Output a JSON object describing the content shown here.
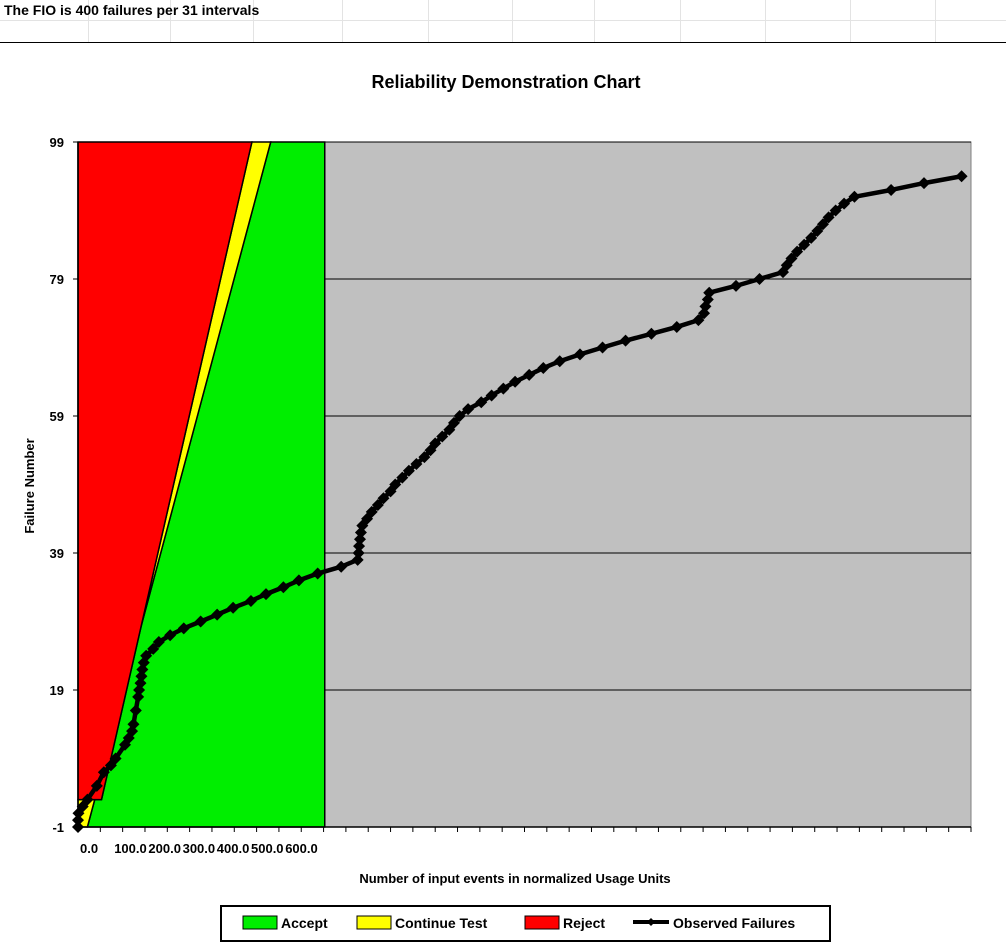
{
  "sheet": {
    "header_text": "The FIO is 400 failures per 31 intervals"
  },
  "colors": {
    "accept": "#00ee00",
    "continue": "#ffff00",
    "reject": "#ff0000",
    "plot_bg": "#c0c0c0",
    "series": "#000000"
  },
  "chart_data": {
    "type": "line",
    "title": "Reliability Demonstration Chart",
    "xlabel": "Number of input events in normalized Usage Units",
    "ylabel": "Failure Number",
    "xlim": [
      0,
      1900
    ],
    "ylim": [
      -1,
      99
    ],
    "y_ticks": [
      -1,
      19,
      39,
      59,
      79,
      99
    ],
    "x_tick_labels": [
      "0.0",
      "100.0",
      "200.0",
      "300.0",
      "400.0",
      "500.0",
      "600.0"
    ],
    "x_tick_values": [
      0,
      100,
      200,
      300,
      400,
      500,
      600
    ],
    "grid": "horizontal",
    "legend_position": "bottom",
    "legend": [
      "Accept",
      "Continue Test",
      "Reject",
      "Observed Failures"
    ],
    "regions": {
      "reject_boundary": [
        [
          0,
          3
        ],
        [
          50,
          3
        ],
        [
          370,
          99
        ]
      ],
      "accept_boundary": [
        [
          20,
          -1
        ],
        [
          410,
          99
        ]
      ],
      "accept_right_edge": 525
    },
    "series": [
      {
        "name": "Observed Failures",
        "points": [
          [
            0,
            -1
          ],
          [
            0,
            0
          ],
          [
            1,
            1
          ],
          [
            10,
            2
          ],
          [
            20,
            3
          ],
          [
            40,
            5
          ],
          [
            55,
            7
          ],
          [
            70,
            8
          ],
          [
            80,
            9
          ],
          [
            100,
            11
          ],
          [
            108,
            12
          ],
          [
            115,
            13
          ],
          [
            118,
            14
          ],
          [
            123,
            16
          ],
          [
            128,
            18
          ],
          [
            130,
            19
          ],
          [
            133,
            20
          ],
          [
            135,
            21
          ],
          [
            137,
            22
          ],
          [
            140,
            23
          ],
          [
            145,
            24
          ],
          [
            160,
            25
          ],
          [
            172,
            26
          ],
          [
            196,
            27
          ],
          [
            225,
            28
          ],
          [
            261,
            29
          ],
          [
            296,
            30
          ],
          [
            330,
            31
          ],
          [
            368,
            32
          ],
          [
            400,
            33
          ],
          [
            437,
            34
          ],
          [
            470,
            35
          ],
          [
            510,
            36
          ],
          [
            560,
            37
          ],
          [
            595,
            38
          ],
          [
            597,
            39
          ],
          [
            598,
            40
          ],
          [
            600,
            41
          ],
          [
            602,
            42
          ],
          [
            605,
            43
          ],
          [
            615,
            44
          ],
          [
            625,
            45
          ],
          [
            638,
            46
          ],
          [
            650,
            47
          ],
          [
            665,
            48
          ],
          [
            675,
            49
          ],
          [
            690,
            50
          ],
          [
            704,
            51
          ],
          [
            720,
            52
          ],
          [
            737,
            53
          ],
          [
            750,
            54
          ],
          [
            760,
            55
          ],
          [
            775,
            56
          ],
          [
            790,
            57
          ],
          [
            800,
            58
          ],
          [
            812,
            59
          ],
          [
            830,
            60
          ],
          [
            858,
            61
          ],
          [
            880,
            62
          ],
          [
            905,
            63
          ],
          [
            930,
            64
          ],
          [
            960,
            65
          ],
          [
            990,
            66
          ],
          [
            1025,
            67
          ],
          [
            1068,
            68
          ],
          [
            1116,
            69
          ],
          [
            1165,
            70
          ],
          [
            1220,
            71
          ],
          [
            1274,
            72
          ],
          [
            1320,
            73
          ],
          [
            1332,
            74
          ],
          [
            1335,
            75
          ],
          [
            1340,
            76
          ],
          [
            1343,
            77
          ],
          [
            1400,
            78
          ],
          [
            1450,
            79
          ],
          [
            1500,
            80
          ],
          [
            1508,
            81
          ],
          [
            1518,
            82
          ],
          [
            1530,
            83
          ],
          [
            1545,
            84
          ],
          [
            1560,
            85
          ],
          [
            1573,
            86
          ],
          [
            1585,
            87
          ],
          [
            1597,
            88
          ],
          [
            1612,
            89
          ],
          [
            1630,
            90
          ],
          [
            1652,
            91
          ],
          [
            1730,
            92
          ],
          [
            1800,
            93
          ],
          [
            1880,
            94
          ]
        ]
      }
    ]
  }
}
